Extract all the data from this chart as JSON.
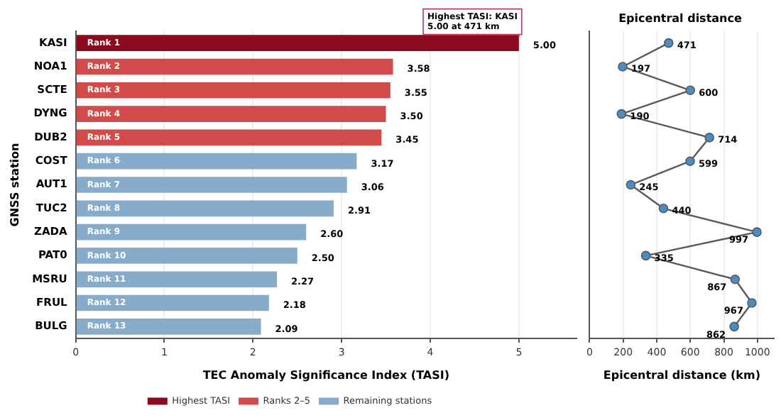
{
  "chart_data": [
    {
      "type": "bar",
      "orientation": "horizontal",
      "stacked": true,
      "ylabel": "GNSS station",
      "xlabel": "TEC Anomaly Significance Index (TASI)",
      "categories": [
        "KASI",
        "NOA1",
        "SCTE",
        "DYNG",
        "DUB2",
        "COST",
        "AUT1",
        "TUC2",
        "ZADA",
        "PAT0",
        "MSRU",
        "FRUL",
        "BULG"
      ],
      "series": [
        {
          "name": "Highest TASI",
          "color": "#8b0a1e",
          "values": [
            5.0,
            null,
            null,
            null,
            null,
            null,
            null,
            null,
            null,
            null,
            null,
            null,
            null
          ],
          "value_labels": [
            "5.00",
            null,
            null,
            null,
            null,
            null,
            null,
            null,
            null,
            null,
            null,
            null,
            null
          ]
        },
        {
          "name": "Ranks 2–5",
          "color": "#d24b4b",
          "values": [
            null,
            3.58,
            3.55,
            3.5,
            3.45,
            null,
            null,
            null,
            null,
            null,
            null,
            null,
            null
          ],
          "value_labels": [
            null,
            "3.58",
            "3.55",
            "3.50",
            "3.45",
            null,
            null,
            null,
            null,
            null,
            null,
            null,
            null
          ]
        },
        {
          "name": "Remaining stations",
          "color": "#87abcb",
          "values": [
            null,
            null,
            null,
            null,
            null,
            3.17,
            3.06,
            2.91,
            2.6,
            2.5,
            2.27,
            2.18,
            2.09
          ],
          "value_labels": [
            null,
            null,
            null,
            null,
            null,
            "3.17",
            "3.06",
            "2.91",
            "2.60",
            "2.50",
            "2.27",
            "2.18",
            "2.09"
          ]
        }
      ],
      "xlim": [
        0,
        5.65
      ],
      "xticks": [
        0,
        1,
        2,
        3,
        4,
        5
      ],
      "grid": "x",
      "legend": "bottom",
      "annotations": [
        {
          "text": "Highest TASI: KASI\n5.00 at 471 km",
          "x": 5.0,
          "y": "KASI"
        },
        {
          "text": "Rank 1",
          "y": "KASI"
        },
        {
          "text": "Rank 2",
          "y": "NOA1"
        },
        {
          "text": "Rank 3",
          "y": "SCTE"
        },
        {
          "text": "Rank 4",
          "y": "DYNG"
        },
        {
          "text": "Rank 5",
          "y": "DUB2"
        },
        {
          "text": "Rank 6",
          "y": "COST"
        },
        {
          "text": "Rank 7",
          "y": "AUT1"
        },
        {
          "text": "Rank 8",
          "y": "TUC2"
        },
        {
          "text": "Rank 9",
          "y": "ZADA"
        },
        {
          "text": "Rank 10",
          "y": "PAT0"
        },
        {
          "text": "Rank 11",
          "y": "MSRU"
        },
        {
          "text": "Rank 12",
          "y": "FRUL"
        },
        {
          "text": "Rank 13",
          "y": "BULG"
        }
      ]
    },
    {
      "type": "line",
      "orientation": "horizontal",
      "title": "Epicentral distance",
      "xlabel": "Epicentral distance (km)",
      "categories": [
        null,
        null,
        null,
        null,
        null,
        null,
        null,
        null,
        null,
        null,
        null,
        null,
        null
      ],
      "series": [
        {
          "color": "#5a5a5a",
          "colors": [
            "#4a8cc4",
            "#4a8cc4",
            "#4a8cc4",
            "#4a8cc4",
            "#4a8cc4",
            "#4a8cc4",
            "#4a8cc4",
            "#4a8cc4",
            "#4a8cc4",
            "#4a8cc4",
            "#4a8cc4",
            "#4a8cc4",
            "#4a8cc4"
          ],
          "values": [
            471,
            197,
            600,
            190,
            714,
            599,
            245,
            440,
            997,
            335,
            867,
            967,
            862
          ]
        }
      ],
      "xlim": [
        0,
        1100
      ],
      "xticks": [
        0,
        200,
        400,
        600,
        800,
        1000
      ],
      "grid": "x",
      "marker": "circle",
      "line_style": "solid",
      "data_labels": true,
      "tick_labels": "x"
    }
  ]
}
